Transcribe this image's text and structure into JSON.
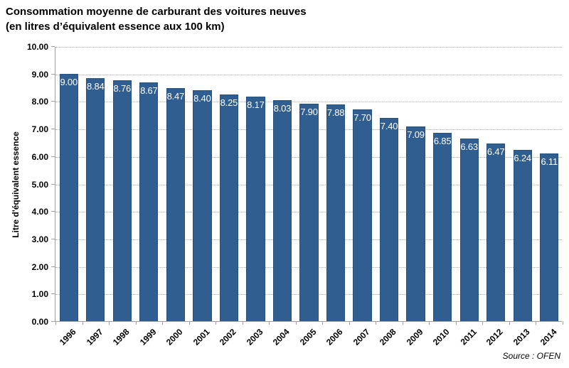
{
  "title": {
    "line1": "Consommation moyenne de carburant des voitures neuves",
    "line2": "(en litres d’équivalent essence aux 100 km)"
  },
  "source": "Source : OFEN",
  "colors": {
    "bar": "#305E90",
    "bar_border": "#28527E",
    "bar_label": "#FFFFFF",
    "gridline": "#ABABAB",
    "axis": "#9E9E9E"
  },
  "chart_data": {
    "type": "bar",
    "title": "Consommation moyenne de carburant des voitures neuves (en litres d’équivalent essence aux 100 km)",
    "categories": [
      "1996",
      "1997",
      "1998",
      "1999",
      "2000",
      "2001",
      "2002",
      "2003",
      "2004",
      "2005",
      "2006",
      "2007",
      "2008",
      "2009",
      "2010",
      "2011",
      "2012",
      "2013",
      "2014"
    ],
    "values": [
      9.0,
      8.84,
      8.76,
      8.67,
      8.47,
      8.4,
      8.25,
      8.17,
      8.03,
      7.9,
      7.88,
      7.7,
      7.4,
      7.09,
      6.85,
      6.63,
      6.47,
      6.24,
      6.11
    ],
    "xlabel": "",
    "ylabel": "Litre d'équivalent essence",
    "ylim": [
      0,
      10
    ],
    "yticks": [
      "0.00",
      "1.00",
      "2.00",
      "3.00",
      "4.00",
      "5.00",
      "6.00",
      "7.00",
      "8.00",
      "9.00",
      "10.00"
    ],
    "grid": "horizontal dotted",
    "legend_position": "none",
    "data_labels": "inside bar top, white",
    "source": "Source : OFEN"
  }
}
